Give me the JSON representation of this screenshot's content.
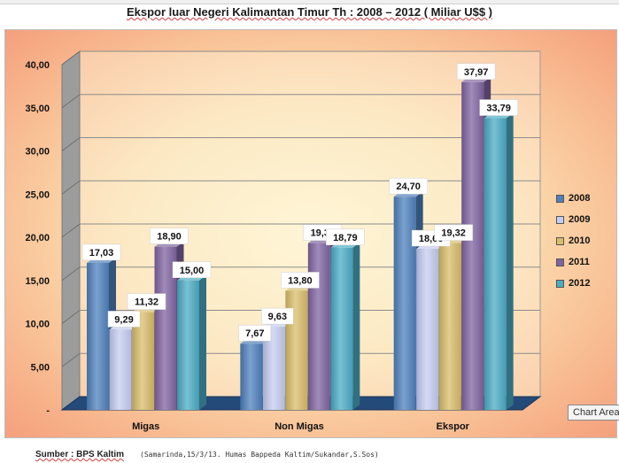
{
  "title": "Ekspor luar Negeri Kalimantan Timur  Th : 2008  – 2012 ( Miliar U$$ )",
  "source": "Sumber : BPS Kaltim",
  "note": "(Samarinda,15/3/13. Humas Bappeda Kaltim/Sukandar,S.Sos)",
  "tooltip": "Chart Area",
  "chart_data": {
    "type": "bar",
    "categories": [
      "Migas",
      "Non Migas",
      "Ekspor"
    ],
    "series": [
      {
        "name": "2008",
        "values": [
          17.03,
          7.67,
          24.7
        ],
        "labels": [
          "17,03",
          "7,67",
          "24,70"
        ],
        "color": "#4f81bd"
      },
      {
        "name": "2009",
        "values": [
          9.29,
          9.63,
          18.66
        ],
        "labels": [
          "9,29",
          "9,63",
          "18,66"
        ],
        "color": "#c6cdf2"
      },
      {
        "name": "2010",
        "values": [
          11.32,
          13.8,
          19.32
        ],
        "labels": [
          "11,32",
          "13,80",
          "19,32"
        ],
        "color": "#d9bd6a"
      },
      {
        "name": "2011",
        "values": [
          18.9,
          19.32,
          37.97
        ],
        "labels": [
          "18,90",
          "19,32",
          "37,97"
        ],
        "color": "#8064a2"
      },
      {
        "name": "2012",
        "values": [
          15.0,
          18.79,
          33.79
        ],
        "labels": [
          "15,00",
          "18,79",
          "33,79"
        ],
        "color": "#4bacc6"
      }
    ],
    "yticks": [
      "-",
      "5,00",
      "10,00",
      "15,00",
      "20,00",
      "25,00",
      "30,00",
      "35,00",
      "40,00"
    ],
    "ylim": [
      0,
      40
    ],
    "legend_position": "right",
    "grid": true
  }
}
